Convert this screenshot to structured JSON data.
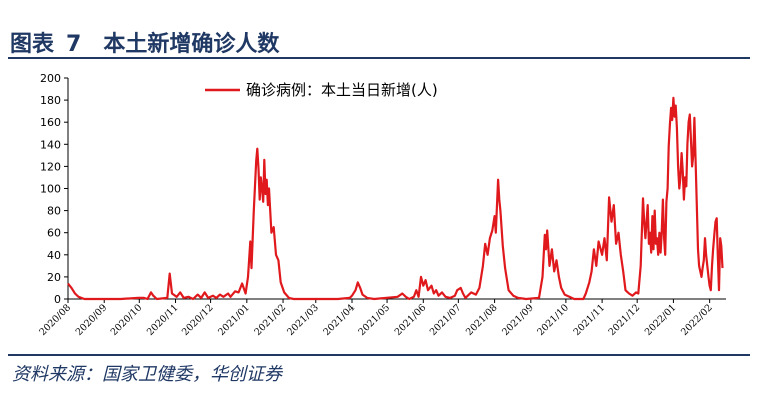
{
  "figure": {
    "label": "图表",
    "number": "7",
    "title": "本土新增确诊人数"
  },
  "source": "资料来源：国家卫健委，华创证券",
  "colors": {
    "series": "#e0191d",
    "title": "#1f3864"
  },
  "chart_data": {
    "type": "line",
    "ylim": [
      0,
      200
    ],
    "yticks": [
      0,
      20,
      40,
      60,
      80,
      100,
      120,
      140,
      160,
      180,
      200
    ],
    "x_range": [
      "2020-08-01",
      "2022-02-15"
    ],
    "x_tick_labels": [
      "2020/08",
      "2020/09",
      "2020/10",
      "2020/11",
      "2020/12",
      "2021/01",
      "2021/02",
      "2021/03",
      "2021/04",
      "2021/05",
      "2021/06",
      "2021/07",
      "2021/08",
      "2021/09",
      "2021/10",
      "2021/11",
      "2021/12",
      "2022/01",
      "2022/02"
    ],
    "legend_position": "top-center",
    "series": [
      {
        "name": "确诊病例：本土当日新增(人)",
        "points": [
          [
            "2020-08-01",
            14
          ],
          [
            "2020-08-04",
            10
          ],
          [
            "2020-08-07",
            5
          ],
          [
            "2020-08-10",
            2
          ],
          [
            "2020-08-15",
            0
          ],
          [
            "2020-09-15",
            0
          ],
          [
            "2020-09-30",
            1
          ],
          [
            "2020-10-05",
            1
          ],
          [
            "2020-10-08",
            0
          ],
          [
            "2020-10-11",
            6
          ],
          [
            "2020-10-13",
            3
          ],
          [
            "2020-10-16",
            0
          ],
          [
            "2020-10-25",
            1
          ],
          [
            "2020-10-27",
            23
          ],
          [
            "2020-10-29",
            5
          ],
          [
            "2020-11-02",
            2
          ],
          [
            "2020-11-05",
            6
          ],
          [
            "2020-11-08",
            1
          ],
          [
            "2020-11-12",
            2
          ],
          [
            "2020-11-16",
            0
          ],
          [
            "2020-11-20",
            4
          ],
          [
            "2020-11-23",
            1
          ],
          [
            "2020-11-26",
            6
          ],
          [
            "2020-11-29",
            1
          ],
          [
            "2020-12-03",
            3
          ],
          [
            "2020-12-06",
            1
          ],
          [
            "2020-12-09",
            4
          ],
          [
            "2020-12-12",
            2
          ],
          [
            "2020-12-16",
            5
          ],
          [
            "2020-12-18",
            2
          ],
          [
            "2020-12-22",
            7
          ],
          [
            "2020-12-25",
            6
          ],
          [
            "2020-12-28",
            14
          ],
          [
            "2020-12-31",
            5
          ],
          [
            "2021-01-02",
            20
          ],
          [
            "2021-01-04",
            52
          ],
          [
            "2021-01-05",
            28
          ],
          [
            "2021-01-07",
            80
          ],
          [
            "2021-01-09",
            125
          ],
          [
            "2021-01-10",
            136
          ],
          [
            "2021-01-11",
            118
          ],
          [
            "2021-01-12",
            90
          ],
          [
            "2021-01-13",
            110
          ],
          [
            "2021-01-14",
            100
          ],
          [
            "2021-01-15",
            88
          ],
          [
            "2021-01-16",
            126
          ],
          [
            "2021-01-17",
            95
          ],
          [
            "2021-01-18",
            108
          ],
          [
            "2021-01-19",
            85
          ],
          [
            "2021-01-20",
            100
          ],
          [
            "2021-01-22",
            60
          ],
          [
            "2021-01-24",
            65
          ],
          [
            "2021-01-26",
            40
          ],
          [
            "2021-01-28",
            35
          ],
          [
            "2021-01-30",
            15
          ],
          [
            "2021-02-02",
            6
          ],
          [
            "2021-02-06",
            1
          ],
          [
            "2021-02-10",
            0
          ],
          [
            "2021-03-20",
            0
          ],
          [
            "2021-03-30",
            1
          ],
          [
            "2021-04-01",
            3
          ],
          [
            "2021-04-04",
            8
          ],
          [
            "2021-04-06",
            15
          ],
          [
            "2021-04-08",
            10
          ],
          [
            "2021-04-10",
            4
          ],
          [
            "2021-04-14",
            1
          ],
          [
            "2021-04-20",
            0
          ],
          [
            "2021-05-10",
            2
          ],
          [
            "2021-05-14",
            5
          ],
          [
            "2021-05-17",
            2
          ],
          [
            "2021-05-20",
            0
          ],
          [
            "2021-05-24",
            2
          ],
          [
            "2021-05-26",
            8
          ],
          [
            "2021-05-28",
            2
          ],
          [
            "2021-05-30",
            20
          ],
          [
            "2021-06-01",
            12
          ],
          [
            "2021-06-03",
            17
          ],
          [
            "2021-06-05",
            8
          ],
          [
            "2021-06-08",
            12
          ],
          [
            "2021-06-10",
            5
          ],
          [
            "2021-06-12",
            8
          ],
          [
            "2021-06-14",
            3
          ],
          [
            "2021-06-17",
            6
          ],
          [
            "2021-06-20",
            2
          ],
          [
            "2021-06-24",
            1
          ],
          [
            "2021-06-28",
            3
          ],
          [
            "2021-06-30",
            8
          ],
          [
            "2021-07-03",
            10
          ],
          [
            "2021-07-05",
            5
          ],
          [
            "2021-07-07",
            1
          ],
          [
            "2021-07-12",
            6
          ],
          [
            "2021-07-16",
            4
          ],
          [
            "2021-07-19",
            10
          ],
          [
            "2021-07-22",
            30
          ],
          [
            "2021-07-24",
            50
          ],
          [
            "2021-07-26",
            40
          ],
          [
            "2021-07-28",
            55
          ],
          [
            "2021-07-30",
            62
          ],
          [
            "2021-08-01",
            75
          ],
          [
            "2021-08-02",
            60
          ],
          [
            "2021-08-04",
            108
          ],
          [
            "2021-08-05",
            90
          ],
          [
            "2021-08-06",
            80
          ],
          [
            "2021-08-08",
            48
          ],
          [
            "2021-08-10",
            28
          ],
          [
            "2021-08-13",
            8
          ],
          [
            "2021-08-17",
            3
          ],
          [
            "2021-08-21",
            1
          ],
          [
            "2021-08-28",
            0
          ],
          [
            "2021-09-08",
            1
          ],
          [
            "2021-09-11",
            20
          ],
          [
            "2021-09-13",
            58
          ],
          [
            "2021-09-14",
            45
          ],
          [
            "2021-09-15",
            62
          ],
          [
            "2021-09-17",
            30
          ],
          [
            "2021-09-19",
            45
          ],
          [
            "2021-09-21",
            25
          ],
          [
            "2021-09-23",
            35
          ],
          [
            "2021-09-25",
            20
          ],
          [
            "2021-09-27",
            10
          ],
          [
            "2021-09-30",
            4
          ],
          [
            "2021-10-04",
            2
          ],
          [
            "2021-10-08",
            0
          ],
          [
            "2021-10-16",
            0
          ],
          [
            "2021-10-18",
            5
          ],
          [
            "2021-10-21",
            15
          ],
          [
            "2021-10-23",
            25
          ],
          [
            "2021-10-25",
            45
          ],
          [
            "2021-10-27",
            30
          ],
          [
            "2021-10-29",
            52
          ],
          [
            "2021-11-01",
            40
          ],
          [
            "2021-11-03",
            55
          ],
          [
            "2021-11-05",
            35
          ],
          [
            "2021-11-07",
            92
          ],
          [
            "2021-11-09",
            70
          ],
          [
            "2021-11-11",
            85
          ],
          [
            "2021-11-13",
            50
          ],
          [
            "2021-11-15",
            60
          ],
          [
            "2021-11-17",
            40
          ],
          [
            "2021-11-19",
            25
          ],
          [
            "2021-11-21",
            8
          ],
          [
            "2021-11-24",
            5
          ],
          [
            "2021-11-27",
            3
          ],
          [
            "2021-11-30",
            6
          ],
          [
            "2021-12-02",
            5
          ],
          [
            "2021-12-04",
            30
          ],
          [
            "2021-12-06",
            91
          ],
          [
            "2021-12-07",
            70
          ],
          [
            "2021-12-08",
            55
          ],
          [
            "2021-12-10",
            85
          ],
          [
            "2021-12-11",
            50
          ],
          [
            "2021-12-12",
            60
          ],
          [
            "2021-12-13",
            42
          ],
          [
            "2021-12-14",
            75
          ],
          [
            "2021-12-15",
            45
          ],
          [
            "2021-12-16",
            80
          ],
          [
            "2021-12-17",
            50
          ],
          [
            "2021-12-18",
            55
          ],
          [
            "2021-12-19",
            40
          ],
          [
            "2021-12-20",
            60
          ],
          [
            "2021-12-21",
            42
          ],
          [
            "2021-12-22",
            60
          ],
          [
            "2021-12-23",
            90
          ],
          [
            "2021-12-24",
            55
          ],
          [
            "2021-12-25",
            40
          ],
          [
            "2021-12-26",
            88
          ],
          [
            "2021-12-27",
            100
          ],
          [
            "2021-12-28",
            138
          ],
          [
            "2021-12-29",
            158
          ],
          [
            "2021-12-30",
            173
          ],
          [
            "2021-12-31",
            162
          ],
          [
            "2022-01-01",
            182
          ],
          [
            "2022-01-02",
            165
          ],
          [
            "2022-01-03",
            175
          ],
          [
            "2022-01-04",
            155
          ],
          [
            "2022-01-05",
            120
          ],
          [
            "2022-01-06",
            100
          ],
          [
            "2022-01-07",
            110
          ],
          [
            "2022-01-08",
            132
          ],
          [
            "2022-01-09",
            115
          ],
          [
            "2022-01-10",
            90
          ],
          [
            "2022-01-11",
            110
          ],
          [
            "2022-01-12",
            102
          ],
          [
            "2022-01-13",
            140
          ],
          [
            "2022-01-14",
            160
          ],
          [
            "2022-01-15",
            167
          ],
          [
            "2022-01-16",
            145
          ],
          [
            "2022-01-17",
            120
          ],
          [
            "2022-01-18",
            130
          ],
          [
            "2022-01-19",
            164
          ],
          [
            "2022-01-20",
            125
          ],
          [
            "2022-01-21",
            85
          ],
          [
            "2022-01-22",
            45
          ],
          [
            "2022-01-23",
            30
          ],
          [
            "2022-01-24",
            25
          ],
          [
            "2022-01-25",
            20
          ],
          [
            "2022-01-26",
            28
          ],
          [
            "2022-01-27",
            35
          ],
          [
            "2022-01-28",
            55
          ],
          [
            "2022-01-29",
            40
          ],
          [
            "2022-01-30",
            30
          ],
          [
            "2022-01-31",
            20
          ],
          [
            "2022-02-01",
            12
          ],
          [
            "2022-02-02",
            8
          ],
          [
            "2022-02-03",
            30
          ],
          [
            "2022-02-04",
            45
          ],
          [
            "2022-02-05",
            58
          ],
          [
            "2022-02-06",
            70
          ],
          [
            "2022-02-07",
            73
          ],
          [
            "2022-02-08",
            40
          ],
          [
            "2022-02-09",
            8
          ],
          [
            "2022-02-10",
            55
          ],
          [
            "2022-02-11",
            48
          ],
          [
            "2022-02-12",
            28
          ]
        ]
      }
    ]
  }
}
